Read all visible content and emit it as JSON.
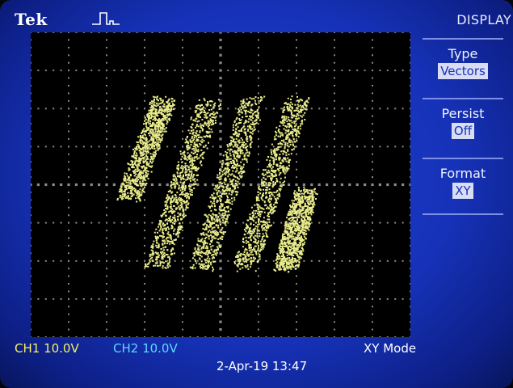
{
  "header": {
    "brand": "Tek",
    "trigger_icon": "rising-pulse-trigger-icon"
  },
  "menu": {
    "title": "DISPLAY",
    "items": [
      {
        "label": "Type",
        "value": "Vectors"
      },
      {
        "label": "Persist",
        "value": "Off"
      },
      {
        "label": "Format",
        "value": "XY"
      }
    ]
  },
  "status": {
    "ch1": "CH1  10.0V",
    "ch2": "CH2  10.0V",
    "mode": "XY Mode",
    "timestamp": "2-Apr-19 13:47"
  },
  "colors": {
    "screen_blue": "#1632b8",
    "trace_yellow": "#e9ec8a",
    "ch1_yellow": "#f3f06a",
    "ch2_cyan": "#5cd8ff"
  },
  "waveform": {
    "description_kind": "xy-persistence-trace",
    "stripes": 5
  }
}
